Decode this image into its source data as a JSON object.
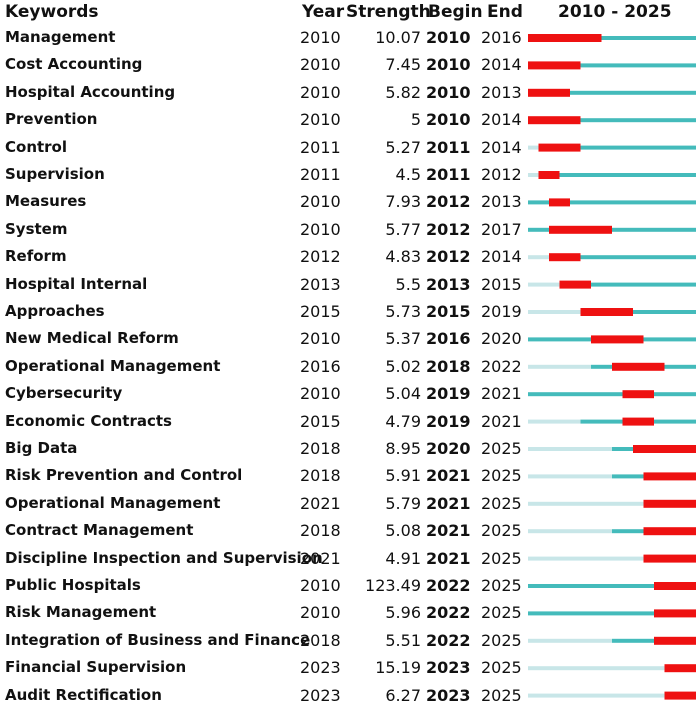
{
  "headers": {
    "keywords": "Keywords",
    "year": "Year",
    "strength": "Strength",
    "begin": "Begin",
    "end": "End",
    "range": "2010 - 2025"
  },
  "colors": {
    "burst": "#ee1111",
    "active": "#44bbbb",
    "before": "#c8e6e8"
  },
  "chart_data": {
    "type": "table",
    "title": "2010 - 2025",
    "timeline_start": 2010,
    "timeline_end": 2025,
    "columns": [
      "Keywords",
      "Year",
      "Strength",
      "Begin",
      "End"
    ],
    "rows": [
      {
        "keyword": "Management",
        "year": 2010,
        "strength": "10.07",
        "begin": 2010,
        "end": 2016
      },
      {
        "keyword": "Cost Accounting",
        "year": 2010,
        "strength": "7.45",
        "begin": 2010,
        "end": 2014
      },
      {
        "keyword": "Hospital Accounting",
        "year": 2010,
        "strength": "5.82",
        "begin": 2010,
        "end": 2013
      },
      {
        "keyword": "Prevention",
        "year": 2010,
        "strength": "5",
        "begin": 2010,
        "end": 2014
      },
      {
        "keyword": "Control",
        "year": 2011,
        "strength": "5.27",
        "begin": 2011,
        "end": 2014
      },
      {
        "keyword": "Supervision",
        "year": 2011,
        "strength": "4.5",
        "begin": 2011,
        "end": 2012
      },
      {
        "keyword": "Measures",
        "year": 2010,
        "strength": "7.93",
        "begin": 2012,
        "end": 2013
      },
      {
        "keyword": "System",
        "year": 2010,
        "strength": "5.77",
        "begin": 2012,
        "end": 2017
      },
      {
        "keyword": "Reform",
        "year": 2012,
        "strength": "4.83",
        "begin": 2012,
        "end": 2014
      },
      {
        "keyword": "Hospital Internal",
        "year": 2013,
        "strength": "5.5",
        "begin": 2013,
        "end": 2015
      },
      {
        "keyword": "Approaches",
        "year": 2015,
        "strength": "5.73",
        "begin": 2015,
        "end": 2019
      },
      {
        "keyword": "New Medical Reform",
        "year": 2010,
        "strength": "5.37",
        "begin": 2016,
        "end": 2020
      },
      {
        "keyword": "Operational Management",
        "year": 2016,
        "strength": "5.02",
        "begin": 2018,
        "end": 2022
      },
      {
        "keyword": "Cybersecurity",
        "year": 2010,
        "strength": "5.04",
        "begin": 2019,
        "end": 2021
      },
      {
        "keyword": "Economic Contracts",
        "year": 2015,
        "strength": "4.79",
        "begin": 2019,
        "end": 2021
      },
      {
        "keyword": "Big Data",
        "year": 2018,
        "strength": "8.95",
        "begin": 2020,
        "end": 2025
      },
      {
        "keyword": "Risk Prevention and Control",
        "year": 2018,
        "strength": "5.91",
        "begin": 2021,
        "end": 2025
      },
      {
        "keyword": "Operational Management",
        "year": 2021,
        "strength": "5.79",
        "begin": 2021,
        "end": 2025
      },
      {
        "keyword": "Contract Management",
        "year": 2018,
        "strength": "5.08",
        "begin": 2021,
        "end": 2025
      },
      {
        "keyword": "Discipline Inspection and Supervision",
        "year": 2021,
        "strength": "4.91",
        "begin": 2021,
        "end": 2025
      },
      {
        "keyword": "Public Hospitals",
        "year": 2010,
        "strength": "123.49",
        "begin": 2022,
        "end": 2025
      },
      {
        "keyword": "Risk Management",
        "year": 2010,
        "strength": "5.96",
        "begin": 2022,
        "end": 2025
      },
      {
        "keyword": "Integration of Business and Finance",
        "year": 2018,
        "strength": "5.51",
        "begin": 2022,
        "end": 2025
      },
      {
        "keyword": "Financial Supervision",
        "year": 2023,
        "strength": "15.19",
        "begin": 2023,
        "end": 2025
      },
      {
        "keyword": "Audit Rectification",
        "year": 2023,
        "strength": "6.27",
        "begin": 2023,
        "end": 2025
      }
    ]
  }
}
